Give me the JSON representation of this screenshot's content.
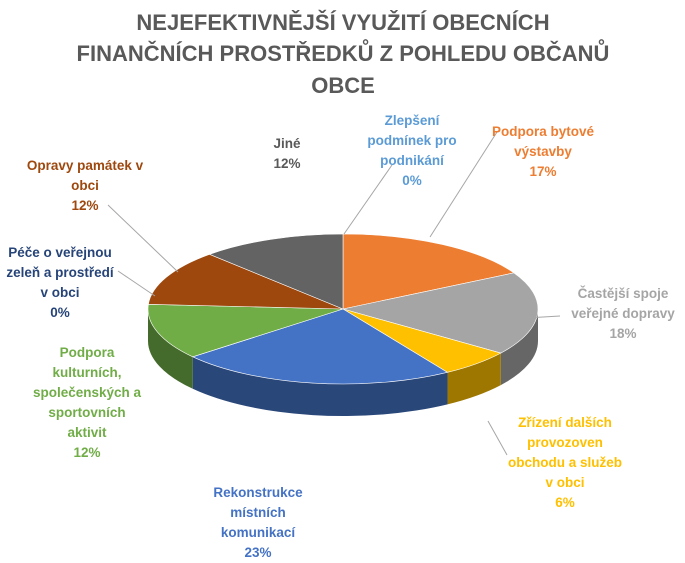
{
  "chart_data": {
    "type": "pie",
    "title_lines": [
      "NEJEFEKTIVNĚJŠÍ VYUŽITÍ OBECNÍCH",
      "FINANČNÍCH PROSTŘEDKŮ Z POHLEDU OBČANŮ",
      "OBCE"
    ],
    "legend": "none",
    "slices": [
      {
        "key": "bytova",
        "lines": [
          "Podpora bytové",
          "výstavby"
        ],
        "pct_label": "17%",
        "value": 17,
        "color": "#ED7D31"
      },
      {
        "key": "doprava",
        "lines": [
          "Častější spoje",
          "veřejné dopravy"
        ],
        "pct_label": "18%",
        "value": 18,
        "color": "#A5A5A5"
      },
      {
        "key": "provozovny",
        "lines": [
          "Zřízení dalších",
          "provozoven",
          "obchodu a služeb",
          "v obci"
        ],
        "pct_label": "6%",
        "value": 6,
        "color": "#FFC000"
      },
      {
        "key": "komunikace",
        "lines": [
          "Rekonstrukce",
          "místních",
          "komunikací"
        ],
        "pct_label": "23%",
        "value": 23,
        "color": "#4472C4"
      },
      {
        "key": "kultura",
        "lines": [
          "Podpora",
          "kulturních,",
          "společenských a",
          "sportovních",
          "aktivit"
        ],
        "pct_label": "12%",
        "value": 12,
        "color": "#70AD47"
      },
      {
        "key": "zelen",
        "lines": [
          "Péče o veřejnou",
          "zeleň a prostředí",
          "v obci"
        ],
        "pct_label": "0%",
        "value": 0,
        "color": "#264478"
      },
      {
        "key": "pamatky",
        "lines": [
          "Opravy památek v",
          "obci"
        ],
        "pct_label": "12%",
        "value": 12,
        "color": "#9E480E"
      },
      {
        "key": "jine",
        "lines": [
          "Jiné"
        ],
        "pct_label": "12%",
        "value": 12,
        "color": "#636363"
      },
      {
        "key": "podnikani",
        "lines": [
          "Zlepšení",
          "podmínek pro",
          "podnikání"
        ],
        "pct_label": "0%",
        "value": 0,
        "color": "#5B9BD5"
      }
    ]
  }
}
